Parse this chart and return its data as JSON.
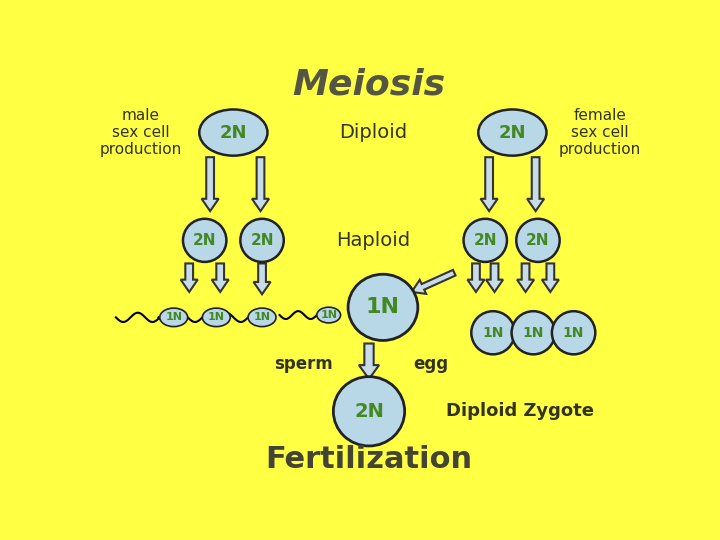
{
  "bg_color": "#FFFF44",
  "title": "Meiosis",
  "title_color": "#555544",
  "title_fontsize": 26,
  "cell_fill": "#B8D8E8",
  "cell_edge": "#222222",
  "label_color": "#448822",
  "text_color": "#333322",
  "arrow_fill": "#C8DCE8",
  "arrow_edge": "#333333",
  "fertilization_color": "#444433",
  "footnote": "Fertilization",
  "diploid_label": "Diploid",
  "haploid_label": "Haploid",
  "sperm_label": "sperm",
  "egg_label": "egg",
  "zygote_label": "Diploid Zygote",
  "male_label": "male\nsex cell\nproduction",
  "female_label": "female\nsex cell\nproduction"
}
